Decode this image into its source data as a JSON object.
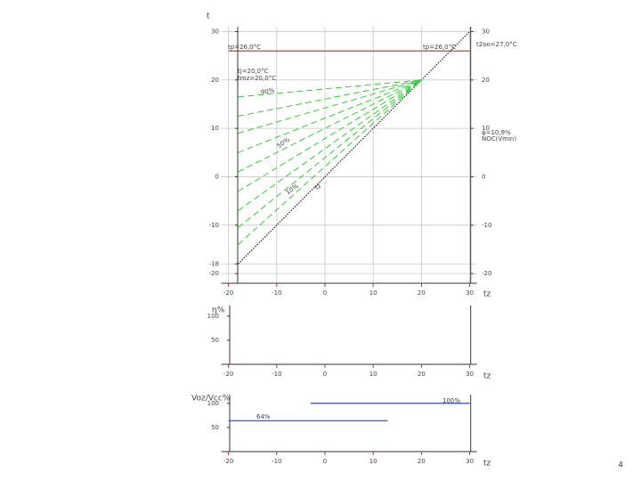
{
  "chart_data": [
    {
      "type": "line",
      "y_label": "t",
      "x_label": "tz",
      "xlim": [
        -21.5,
        31.5
      ],
      "ylim": [
        -22,
        31
      ],
      "xticks": [
        -20,
        -10,
        0,
        10,
        20,
        30
      ],
      "yticks": [
        30,
        20,
        10,
        0,
        -10,
        -18,
        -20
      ],
      "y2lim": [
        -22,
        31
      ],
      "y2ticks": [
        30,
        20,
        10,
        0,
        -10,
        -20
      ],
      "grid": true,
      "series": [
        {
          "color": "#b03030",
          "dash": "solid",
          "x": [
            -20,
            30
          ],
          "values": [
            26,
            26
          ]
        },
        {
          "color": "#222222",
          "dash": "dotted",
          "x": [
            -18,
            30
          ],
          "values": [
            -18,
            30
          ]
        },
        {
          "color": "#33cc33",
          "dash": "dashed",
          "x": [
            -18,
            20
          ],
          "values": [
            16.5,
            20
          ]
        },
        {
          "color": "#33cc33",
          "dash": "dashed",
          "x": [
            -18,
            20
          ],
          "values": [
            12.5,
            20
          ]
        },
        {
          "color": "#33cc33",
          "dash": "dashed",
          "x": [
            -18,
            20
          ],
          "values": [
            9,
            20
          ]
        },
        {
          "color": "#33cc33",
          "dash": "dashed",
          "x": [
            -18,
            20
          ],
          "values": [
            5,
            20
          ]
        },
        {
          "color": "#33cc33",
          "dash": "dashed",
          "x": [
            -18,
            20
          ],
          "values": [
            1,
            20
          ]
        },
        {
          "color": "#33cc33",
          "dash": "dashed",
          "x": [
            -18,
            20
          ],
          "values": [
            -3,
            20
          ]
        },
        {
          "color": "#33cc33",
          "dash": "dashed",
          "x": [
            -18,
            20
          ],
          "values": [
            -7,
            20
          ]
        },
        {
          "color": "#33cc33",
          "dash": "dashed",
          "x": [
            -18,
            20
          ],
          "values": [
            -10.5,
            20
          ]
        },
        {
          "color": "#33cc33",
          "dash": "dashed",
          "x": [
            -18,
            20
          ],
          "values": [
            -14,
            20
          ]
        }
      ],
      "annotations": [
        "tp=26,0°C",
        "tp=26,0°C",
        "t2oo=27,0°C",
        "tj=20,0°C",
        "tmz=20,0°C",
        "φ=10,9%",
        "NOC(Vmin)",
        "90%",
        "50%",
        "10%",
        "tz"
      ]
    },
    {
      "type": "line",
      "y_label": "η%",
      "x_label": "tz",
      "xlim": [
        -21.5,
        31.5
      ],
      "ylim": [
        0,
        122
      ],
      "xticks": [
        -20,
        -10,
        0,
        10,
        20,
        30
      ],
      "yticks": [
        100,
        50
      ],
      "grid": false,
      "series": [],
      "annotations": []
    },
    {
      "type": "line",
      "y_label": "Voz/Vcc%",
      "x_label": "tz",
      "xlim": [
        -21.5,
        31.5
      ],
      "ylim": [
        0,
        118
      ],
      "xticks": [
        -20,
        -10,
        0,
        10,
        20,
        30
      ],
      "yticks": [
        100,
        50
      ],
      "grid": false,
      "series": [
        {
          "color": "#3344aa",
          "dash": "solid",
          "x": [
            -3,
            30
          ],
          "values": [
            100,
            100
          ]
        },
        {
          "color": "#3344aa",
          "dash": "solid",
          "x": [
            -20,
            13
          ],
          "values": [
            64,
            64
          ]
        }
      ],
      "annotations": [
        "100%",
        "64%"
      ]
    }
  ],
  "page_number": "4"
}
